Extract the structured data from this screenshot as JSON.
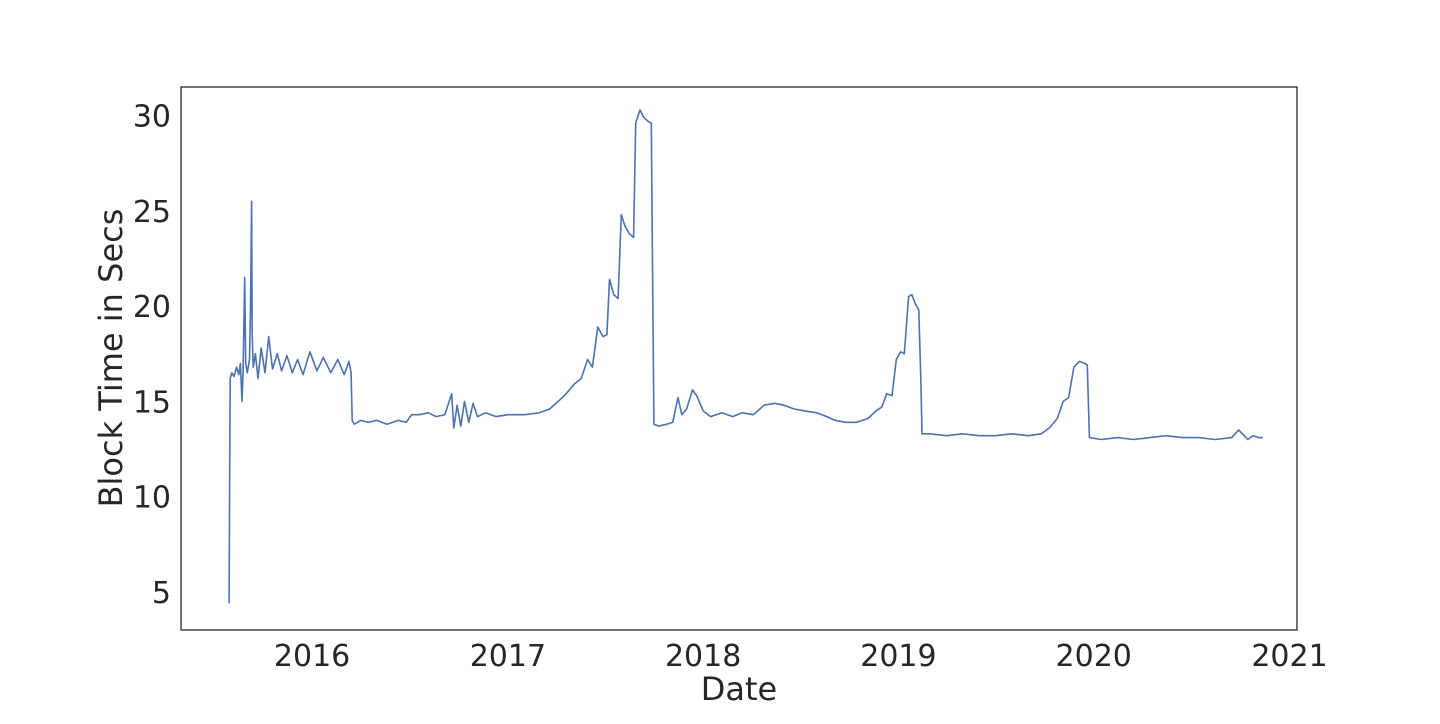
{
  "chart_data": {
    "type": "line",
    "title": "",
    "xlabel": "Date",
    "ylabel": "Block Time in Secs",
    "x_axis_type": "date",
    "xlim": [
      "2015-05-01",
      "2021-01-15"
    ],
    "ylim": [
      3,
      31.5
    ],
    "grid": false,
    "legend": "none",
    "x_ticks": [
      {
        "date": "2016-01-01",
        "label": "2016"
      },
      {
        "date": "2017-01-01",
        "label": "2017"
      },
      {
        "date": "2018-01-01",
        "label": "2018"
      },
      {
        "date": "2019-01-01",
        "label": "2019"
      },
      {
        "date": "2020-01-01",
        "label": "2020"
      },
      {
        "date": "2021-01-01",
        "label": "2021"
      }
    ],
    "y_ticks": [
      5,
      10,
      15,
      20,
      25,
      30
    ],
    "series": [
      {
        "color": "#4c72b0",
        "points": [
          [
            "2015-07-30",
            4.4
          ],
          [
            "2015-07-31",
            11.5
          ],
          [
            "2015-08-01",
            16.2
          ],
          [
            "2015-08-04",
            16.5
          ],
          [
            "2015-08-08",
            16.3
          ],
          [
            "2015-08-13",
            16.8
          ],
          [
            "2015-08-17",
            16.4
          ],
          [
            "2015-08-20",
            17.0
          ],
          [
            "2015-08-23",
            15.0
          ],
          [
            "2015-08-25",
            16.6
          ],
          [
            "2015-08-28",
            21.5
          ],
          [
            "2015-08-30",
            17.0
          ],
          [
            "2015-09-02",
            16.5
          ],
          [
            "2015-09-06",
            17.2
          ],
          [
            "2015-09-08",
            19.8
          ],
          [
            "2015-09-10",
            25.5
          ],
          [
            "2015-09-11",
            18.5
          ],
          [
            "2015-09-13",
            16.8
          ],
          [
            "2015-09-17",
            17.5
          ],
          [
            "2015-09-22",
            16.2
          ],
          [
            "2015-09-28",
            17.8
          ],
          [
            "2015-10-05",
            16.5
          ],
          [
            "2015-10-12",
            18.4
          ],
          [
            "2015-10-19",
            16.7
          ],
          [
            "2015-10-28",
            17.5
          ],
          [
            "2015-11-05",
            16.6
          ],
          [
            "2015-11-15",
            17.4
          ],
          [
            "2015-11-25",
            16.5
          ],
          [
            "2015-12-05",
            17.2
          ],
          [
            "2015-12-15",
            16.4
          ],
          [
            "2015-12-28",
            17.6
          ],
          [
            "2016-01-10",
            16.6
          ],
          [
            "2016-01-22",
            17.3
          ],
          [
            "2016-02-05",
            16.5
          ],
          [
            "2016-02-18",
            17.2
          ],
          [
            "2016-03-01",
            16.4
          ],
          [
            "2016-03-10",
            17.1
          ],
          [
            "2016-03-14",
            16.5
          ],
          [
            "2016-03-16",
            14.0
          ],
          [
            "2016-03-20",
            13.8
          ],
          [
            "2016-04-01",
            14.0
          ],
          [
            "2016-04-15",
            13.9
          ],
          [
            "2016-05-01",
            14.0
          ],
          [
            "2016-05-20",
            13.8
          ],
          [
            "2016-06-10",
            14.0
          ],
          [
            "2016-06-25",
            13.9
          ],
          [
            "2016-07-05",
            14.3
          ],
          [
            "2016-07-20",
            14.3
          ],
          [
            "2016-08-05",
            14.4
          ],
          [
            "2016-08-20",
            14.2
          ],
          [
            "2016-09-05",
            14.3
          ],
          [
            "2016-09-18",
            15.4
          ],
          [
            "2016-09-22",
            13.6
          ],
          [
            "2016-09-28",
            14.8
          ],
          [
            "2016-10-05",
            13.7
          ],
          [
            "2016-10-12",
            15.0
          ],
          [
            "2016-10-20",
            13.9
          ],
          [
            "2016-10-28",
            14.9
          ],
          [
            "2016-11-05",
            14.2
          ],
          [
            "2016-11-20",
            14.4
          ],
          [
            "2016-12-10",
            14.2
          ],
          [
            "2017-01-01",
            14.3
          ],
          [
            "2017-02-01",
            14.3
          ],
          [
            "2017-03-01",
            14.4
          ],
          [
            "2017-03-20",
            14.6
          ],
          [
            "2017-04-05",
            15.0
          ],
          [
            "2017-04-20",
            15.4
          ],
          [
            "2017-05-05",
            15.9
          ],
          [
            "2017-05-18",
            16.2
          ],
          [
            "2017-05-30",
            17.2
          ],
          [
            "2017-06-08",
            16.8
          ],
          [
            "2017-06-18",
            18.9
          ],
          [
            "2017-06-28",
            18.4
          ],
          [
            "2017-07-05",
            18.5
          ],
          [
            "2017-07-10",
            21.4
          ],
          [
            "2017-07-18",
            20.6
          ],
          [
            "2017-07-26",
            20.4
          ],
          [
            "2017-08-01",
            24.8
          ],
          [
            "2017-08-08",
            24.2
          ],
          [
            "2017-08-16",
            23.8
          ],
          [
            "2017-08-24",
            23.6
          ],
          [
            "2017-08-28",
            29.6
          ],
          [
            "2017-09-05",
            30.3
          ],
          [
            "2017-09-12",
            29.9
          ],
          [
            "2017-09-20",
            29.7
          ],
          [
            "2017-09-26",
            29.6
          ],
          [
            "2017-10-01",
            13.8
          ],
          [
            "2017-10-10",
            13.7
          ],
          [
            "2017-10-25",
            13.8
          ],
          [
            "2017-11-05",
            13.9
          ],
          [
            "2017-11-15",
            15.2
          ],
          [
            "2017-11-22",
            14.3
          ],
          [
            "2017-12-01",
            14.6
          ],
          [
            "2017-12-12",
            15.6
          ],
          [
            "2017-12-20",
            15.3
          ],
          [
            "2018-01-01",
            14.5
          ],
          [
            "2018-01-15",
            14.2
          ],
          [
            "2018-02-05",
            14.4
          ],
          [
            "2018-02-25",
            14.2
          ],
          [
            "2018-03-15",
            14.4
          ],
          [
            "2018-04-05",
            14.3
          ],
          [
            "2018-04-25",
            14.8
          ],
          [
            "2018-05-15",
            14.9
          ],
          [
            "2018-06-01",
            14.8
          ],
          [
            "2018-06-20",
            14.6
          ],
          [
            "2018-07-10",
            14.5
          ],
          [
            "2018-08-01",
            14.4
          ],
          [
            "2018-08-20",
            14.2
          ],
          [
            "2018-09-05",
            14.0
          ],
          [
            "2018-09-25",
            13.9
          ],
          [
            "2018-10-15",
            13.9
          ],
          [
            "2018-11-05",
            14.1
          ],
          [
            "2018-11-20",
            14.5
          ],
          [
            "2018-12-01",
            14.7
          ],
          [
            "2018-12-10",
            15.4
          ],
          [
            "2018-12-20",
            15.3
          ],
          [
            "2018-12-28",
            17.2
          ],
          [
            "2019-01-05",
            17.6
          ],
          [
            "2019-01-12",
            17.5
          ],
          [
            "2019-01-20",
            20.5
          ],
          [
            "2019-01-26",
            20.6
          ],
          [
            "2019-02-02",
            20.1
          ],
          [
            "2019-02-08",
            19.8
          ],
          [
            "2019-02-12",
            16.0
          ],
          [
            "2019-02-14",
            13.3
          ],
          [
            "2019-03-01",
            13.3
          ],
          [
            "2019-04-01",
            13.2
          ],
          [
            "2019-05-01",
            13.3
          ],
          [
            "2019-06-01",
            13.2
          ],
          [
            "2019-07-01",
            13.2
          ],
          [
            "2019-08-01",
            13.3
          ],
          [
            "2019-09-01",
            13.2
          ],
          [
            "2019-09-25",
            13.3
          ],
          [
            "2019-10-10",
            13.6
          ],
          [
            "2019-10-25",
            14.1
          ],
          [
            "2019-11-05",
            15.0
          ],
          [
            "2019-11-15",
            15.2
          ],
          [
            "2019-11-25",
            16.8
          ],
          [
            "2019-12-05",
            17.1
          ],
          [
            "2019-12-15",
            17.0
          ],
          [
            "2019-12-20",
            16.9
          ],
          [
            "2019-12-24",
            13.1
          ],
          [
            "2020-01-15",
            13.0
          ],
          [
            "2020-02-15",
            13.1
          ],
          [
            "2020-03-15",
            13.0
          ],
          [
            "2020-04-15",
            13.1
          ],
          [
            "2020-05-15",
            13.2
          ],
          [
            "2020-06-15",
            13.1
          ],
          [
            "2020-07-15",
            13.1
          ],
          [
            "2020-08-15",
            13.0
          ],
          [
            "2020-09-15",
            13.1
          ],
          [
            "2020-09-28",
            13.5
          ],
          [
            "2020-10-05",
            13.3
          ],
          [
            "2020-10-15",
            13.0
          ],
          [
            "2020-10-25",
            13.2
          ],
          [
            "2020-11-05",
            13.1
          ],
          [
            "2020-11-12",
            13.1
          ]
        ]
      }
    ]
  }
}
